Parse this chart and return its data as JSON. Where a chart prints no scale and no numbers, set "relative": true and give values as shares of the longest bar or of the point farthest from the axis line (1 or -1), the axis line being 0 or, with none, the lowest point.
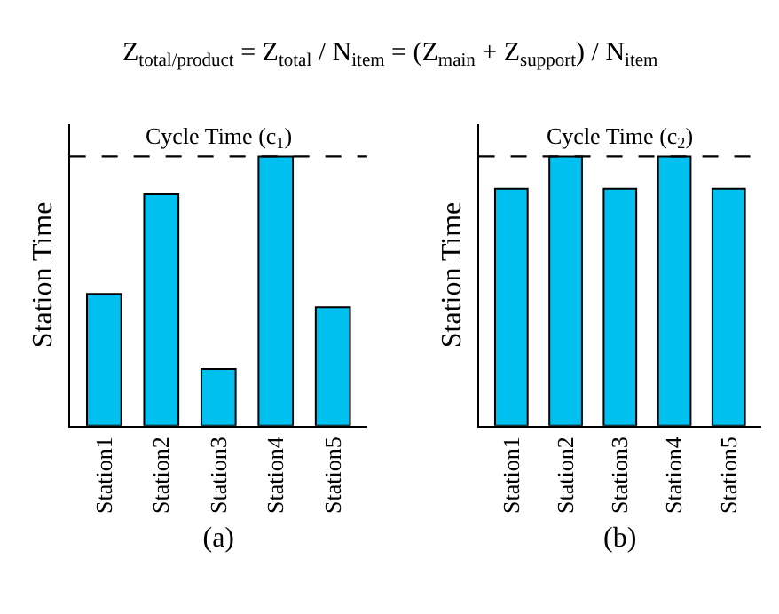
{
  "chart_data": [
    {
      "type": "bar",
      "title": "Z$_{total/product}$ = Z$_{total}$ / N$_{item}$ = (Z$_{main}$ + Z$_{support}$) / N$_{item}$",
      "xlabel": "(a)",
      "ylabel": "Station Time",
      "relative": true,
      "categories": [
        "Station1",
        "Station2",
        "Station3",
        "Station4",
        "Station5"
      ],
      "values": [
        0.49,
        0.86,
        0.21,
        1,
        0.44
      ],
      "color": "#00c0f0",
      "ref_lines": [
        {
          "axis": "y",
          "value": 1,
          "label": "Cycle Time (c$_{1}$)",
          "line_style": "dashed",
          "color": "#000000"
        }
      ]
    },
    {
      "type": "bar",
      "xlabel": "(b)",
      "ylabel": "Station Time",
      "relative": true,
      "categories": [
        "Station1",
        "Station2",
        "Station3",
        "Station4",
        "Station5"
      ],
      "values": [
        0.88,
        1,
        0.88,
        1,
        0.88
      ],
      "color": "#00c0f0",
      "ref_lines": [
        {
          "axis": "y",
          "value": 1,
          "label": "Cycle Time (c$_{2}$)",
          "line_style": "dashed",
          "color": "#000000"
        }
      ]
    }
  ]
}
